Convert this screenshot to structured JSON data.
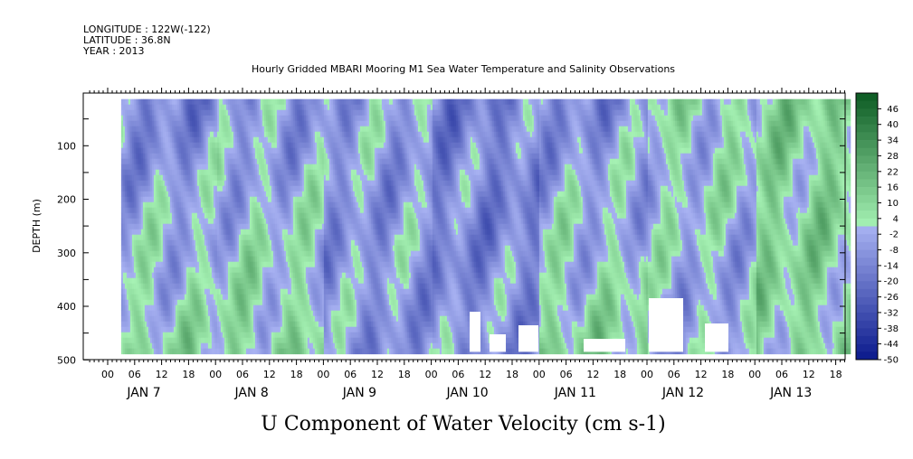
{
  "header": {
    "lines": [
      "LONGITUDE : 122W(-122)",
      "LATITUDE : 36.8N",
      "YEAR : 2013"
    ]
  },
  "chart_data": {
    "type": "heatmap",
    "title": "Hourly Gridded MBARI Mooring M1 Sea Water Temperature and Salinity Observations",
    "xlabel": "U Component of Water Velocity (cm s-1)",
    "ylabel": "DEPTH (m)",
    "ylim": [
      500,
      0
    ],
    "y_ticks": [
      100,
      200,
      300,
      400,
      500
    ],
    "x_hour_ticks": [
      "00",
      "06",
      "12",
      "18",
      "00",
      "06",
      "12",
      "18",
      "00",
      "06",
      "12",
      "18",
      "00",
      "06",
      "12",
      "18",
      "00",
      "06",
      "12",
      "18",
      "00",
      "06",
      "12",
      "18",
      "00",
      "06",
      "12",
      "18"
    ],
    "x_day_labels": [
      "JAN  7",
      "JAN  8",
      "JAN  9",
      "JAN 10",
      "JAN 11",
      "JAN 12",
      "JAN 13"
    ],
    "colorbar": {
      "labels": [
        "46",
        "40",
        "34",
        "28",
        "22",
        "16",
        "10",
        "4",
        "-2",
        "-8",
        "-14",
        "-20",
        "-26",
        "-32",
        "-38",
        "-44",
        "-50"
      ],
      "min": -50,
      "max": 52,
      "step": 3
    },
    "colors": {
      "negative_strong": "#0a1a8c",
      "negative_weak": "#a8b2f2",
      "positive_weak": "#a6f2b4",
      "positive_strong": "#0b5a22"
    },
    "data_depth_range": [
      18,
      485
    ],
    "time_range": [
      "JAN 7 00:00",
      "JAN 13 21:00"
    ],
    "data_start": "JAN 7 03:00",
    "description_values": {
      "depths": [
        20,
        100,
        200,
        300,
        400,
        480
      ],
      "day_means_near_surface": [
        -12,
        -8,
        -6,
        -14,
        -10,
        4,
        10
      ],
      "day_means_deep": [
        6,
        8,
        -8,
        -10,
        8,
        -6,
        8
      ]
    }
  }
}
